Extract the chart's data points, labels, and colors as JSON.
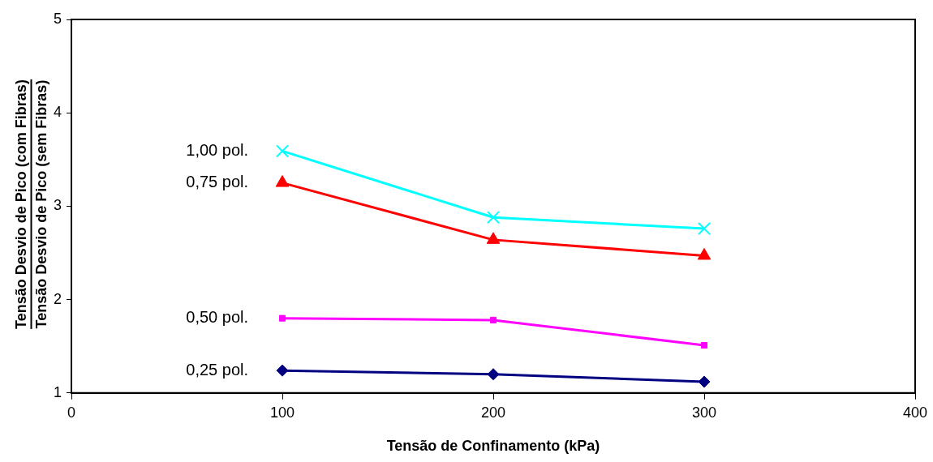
{
  "chart_data": {
    "type": "line",
    "xlabel": "Tensão de Confinamento (kPa)",
    "ylabel": "Tensão Desvio de Pico (com Fibras)\nTensão Desvio de Pico (sem Fibras)",
    "x": [
      100,
      200,
      300
    ],
    "series": [
      {
        "name": "1,00 pol.",
        "color": "#00ffff",
        "marker": "cross",
        "values": [
          3.59,
          2.88,
          2.76
        ]
      },
      {
        "name": "0,75 pol.",
        "color": "#ff0000",
        "marker": "triangle",
        "values": [
          3.25,
          2.64,
          2.47
        ]
      },
      {
        "name": "0,50 pol.",
        "color": "#ff00ff",
        "marker": "square",
        "values": [
          1.8,
          1.78,
          1.51
        ]
      },
      {
        "name": "0,25 pol.",
        "color": "#000080",
        "marker": "diamond",
        "values": [
          1.24,
          1.2,
          1.12
        ]
      }
    ],
    "xlim": [
      0,
      400
    ],
    "xticks": [
      0,
      100,
      200,
      300,
      400
    ],
    "ylim": [
      1,
      5
    ],
    "yticks": [
      1,
      2,
      3,
      4,
      5
    ],
    "grid": false,
    "legend": false
  }
}
